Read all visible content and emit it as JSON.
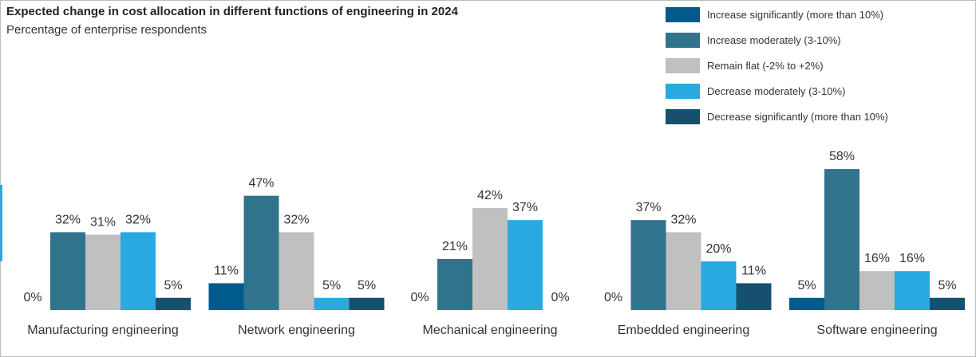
{
  "chart_data": {
    "type": "bar",
    "title": "Expected change in cost allocation in different functions of engineering in 2024",
    "subtitle": "Percentage of enterprise respondents",
    "categories": [
      "Manufacturing engineering",
      "Network engineering",
      "Mechanical engineering",
      "Embedded engineering",
      "Software engineering"
    ],
    "series": [
      {
        "name": "Increase significantly (more than 10%)",
        "color": "#005a8c",
        "values": [
          0,
          11,
          0,
          0,
          5
        ]
      },
      {
        "name": "Increase moderately (3-10%)",
        "color": "#2f748c",
        "values": [
          32,
          47,
          21,
          37,
          58
        ]
      },
      {
        "name": "Remain flat (-2% to +2%)",
        "color": "#c0c0c0",
        "values": [
          31,
          32,
          42,
          32,
          16
        ]
      },
      {
        "name": "Decrease moderately (3-10%)",
        "color": "#2aa8e0",
        "values": [
          32,
          5,
          37,
          20,
          16
        ]
      },
      {
        "name": "Decrease significantly (more than 10%)",
        "color": "#16506e",
        "values": [
          5,
          5,
          0,
          11,
          5
        ]
      }
    ],
    "value_suffix": "%",
    "legend_position": "top-right",
    "grid": false
  }
}
